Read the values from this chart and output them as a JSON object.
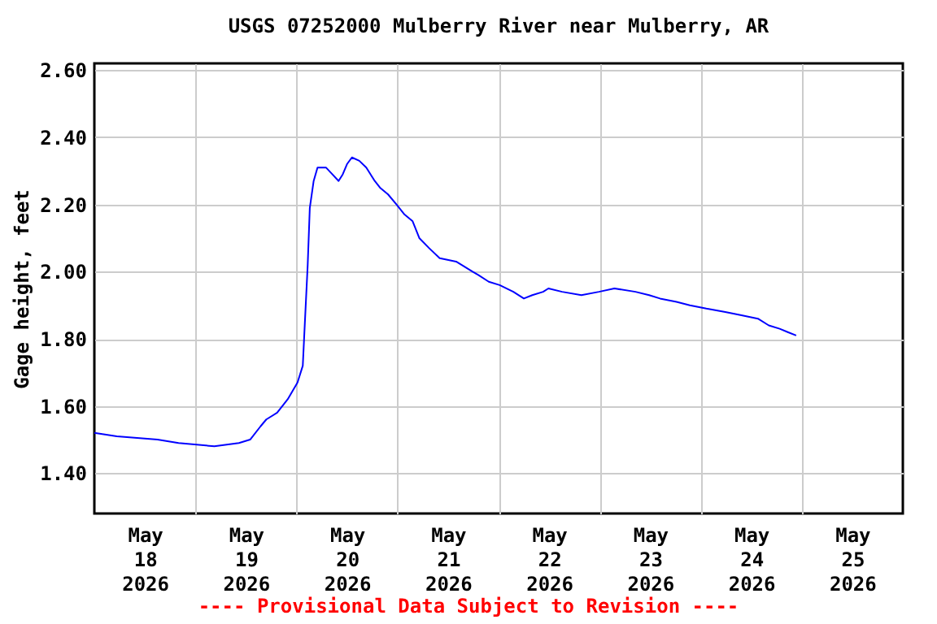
{
  "chart_data": {
    "type": "line",
    "title": "USGS 07252000 Mulberry River near Mulberry, AR",
    "ylabel": "Gage height, feet",
    "annotations": [
      "---- Provisional Data Subject to Revision ----"
    ],
    "x": [
      "2026-05-18T00:00",
      "2026-05-18T05:20",
      "2026-05-18T15:00",
      "2026-05-18T20:00",
      "2026-05-19T04:30",
      "2026-05-19T10:20",
      "2026-05-19T13:00",
      "2026-05-19T15:30",
      "2026-05-19T16:50",
      "2026-05-19T19:25",
      "2026-05-19T21:55",
      "2026-05-20T00:15",
      "2026-05-20T01:30",
      "2026-05-20T02:00",
      "2026-05-20T02:40",
      "2026-05-20T03:10",
      "2026-05-20T04:05",
      "2026-05-20T05:00",
      "2026-05-20T07:00",
      "2026-05-20T08:30",
      "2026-05-20T10:00",
      "2026-05-20T11:00",
      "2026-05-20T12:00",
      "2026-05-20T13:10",
      "2026-05-20T14:55",
      "2026-05-20T16:35",
      "2026-05-20T18:35",
      "2026-05-20T19:50",
      "2026-05-20T21:45",
      "2026-05-20T23:45",
      "2026-05-21T01:40",
      "2026-05-21T03:35",
      "2026-05-21T05:10",
      "2026-05-21T07:30",
      "2026-05-21T10:00",
      "2026-05-21T13:55",
      "2026-05-21T17:50",
      "2026-05-21T19:10",
      "2026-05-21T21:40",
      "2026-05-22T00:15",
      "2026-05-22T03:30",
      "2026-05-22T06:00",
      "2026-05-22T08:00",
      "2026-05-22T10:35",
      "2026-05-22T11:50",
      "2026-05-22T15:05",
      "2026-05-22T19:40",
      "2026-05-22T23:50",
      "2026-05-23T03:30",
      "2026-05-23T08:30",
      "2026-05-23T11:45",
      "2026-05-23T14:20",
      "2026-05-23T18:15",
      "2026-05-23T21:25",
      "2026-05-24T01:20",
      "2026-05-24T05:50",
      "2026-05-24T09:40",
      "2026-05-24T13:35",
      "2026-05-24T16:10",
      "2026-05-24T18:45",
      "2026-05-24T20:40",
      "2026-05-24T22:40"
    ],
    "series": [
      {
        "color": "#0000ff",
        "values": [
          1.52,
          1.51,
          1.5,
          1.49,
          1.48,
          1.49,
          1.5,
          1.54,
          1.56,
          1.58,
          1.62,
          1.67,
          1.72,
          1.85,
          2.02,
          2.19,
          2.27,
          2.31,
          2.31,
          2.29,
          2.27,
          2.29,
          2.32,
          2.34,
          2.33,
          2.31,
          2.27,
          2.25,
          2.23,
          2.2,
          2.17,
          2.15,
          2.1,
          2.07,
          2.04,
          2.03,
          2.0,
          1.99,
          1.97,
          1.96,
          1.94,
          1.92,
          1.93,
          1.94,
          1.95,
          1.94,
          1.93,
          1.94,
          1.95,
          1.94,
          1.93,
          1.92,
          1.91,
          1.9,
          1.89,
          1.88,
          1.87,
          1.86,
          1.84,
          1.83,
          1.82,
          1.81
        ]
      }
    ],
    "xlim": [
      "2026-05-18T00:00",
      "2026-05-26T00:00"
    ],
    "xticks": [
      {
        "value": "2026-05-18T12:00",
        "label": "May\n18\n2026"
      },
      {
        "value": "2026-05-19T12:00",
        "label": "May\n19\n2026"
      },
      {
        "value": "2026-05-20T12:00",
        "label": "May\n20\n2026"
      },
      {
        "value": "2026-05-21T12:00",
        "label": "May\n21\n2026"
      },
      {
        "value": "2026-05-22T12:00",
        "label": "May\n22\n2026"
      },
      {
        "value": "2026-05-23T12:00",
        "label": "May\n23\n2026"
      },
      {
        "value": "2026-05-24T12:00",
        "label": "May\n24\n2026"
      },
      {
        "value": "2026-05-25T12:00",
        "label": "May\n25\n2026"
      }
    ],
    "ylim": [
      1.28,
      2.62
    ],
    "yticks": [
      {
        "value": 1.4,
        "label": "1.40"
      },
      {
        "value": 1.6,
        "label": "1.60"
      },
      {
        "value": 1.8,
        "label": "1.80"
      },
      {
        "value": 2.0,
        "label": "2.00"
      },
      {
        "value": 2.2,
        "label": "2.20"
      },
      {
        "value": 2.4,
        "label": "2.40"
      },
      {
        "value": 2.6,
        "label": "2.60"
      }
    ],
    "grid": true
  }
}
